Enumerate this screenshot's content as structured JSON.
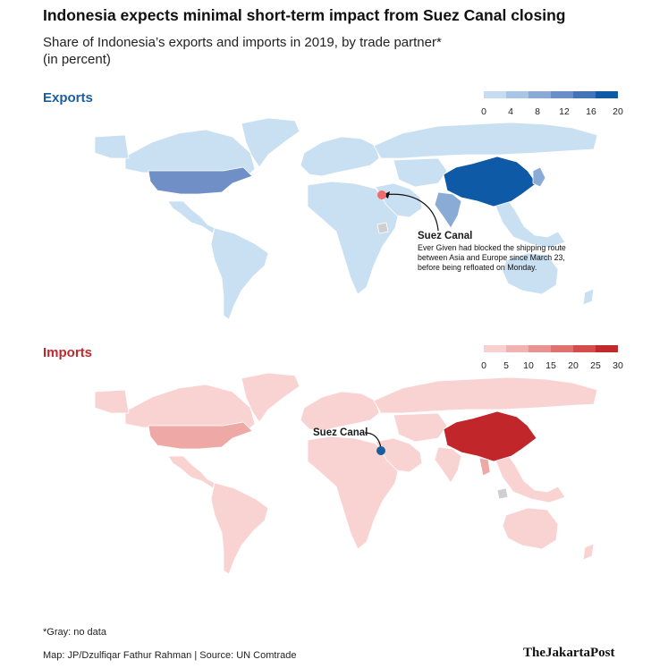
{
  "title": "Indonesia expects minimal short-term impact from Suez Canal closing",
  "subtitle": "Share of Indonesia’s exports and imports in 2019, by trade partner*\n(in percent)",
  "exports": {
    "heading": "Exports",
    "color": "#1b5e9e",
    "legend": {
      "ticks": [
        "0",
        "4",
        "8",
        "12",
        "16",
        "20"
      ],
      "colors": [
        "#c6dcf0",
        "#a9c5e4",
        "#8aabd6",
        "#6a8fc6",
        "#4474b6",
        "#0f5aa6"
      ]
    },
    "annotation": {
      "label": "Suez Canal",
      "text": [
        "Ever Given had blocked the shipping route",
        "between Asia and Europe since March 23,",
        "before being refloated on Monday."
      ],
      "marker_color": "#f26b6b"
    }
  },
  "imports": {
    "heading": "Imports",
    "color": "#c0282d",
    "legend": {
      "ticks": [
        "0",
        "5",
        "10",
        "15",
        "20",
        "25",
        "30"
      ],
      "colors": [
        "#f7d0cf",
        "#f0b3b0",
        "#e89390",
        "#df716f",
        "#d44d4c",
        "#c12a2b"
      ]
    },
    "annotation": {
      "label": "Suez Canal",
      "marker_color": "#1b5e9e"
    }
  },
  "map_colors": {
    "exports_base": "#c9dff2",
    "exports_usa": "#6f8fc6",
    "exports_china": "#0f5aa6",
    "exports_india": "#8aabd6",
    "exports_japan": "#8aabd6",
    "imports_base": "#f9d3d2",
    "imports_usa": "#eea8a5",
    "imports_china": "#c0262a",
    "imports_thailand": "#eea8a5",
    "no_data": "#cfcfcf",
    "border": "#ffffff"
  },
  "footnote": "*Gray: no data",
  "credit": "Map: JP/Dzulfiqar Fathur Rahman | Source: UN Comtrade",
  "brand": "TheJakartaPost"
}
